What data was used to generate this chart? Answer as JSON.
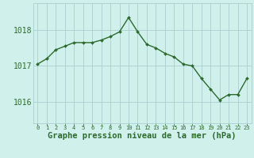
{
  "x": [
    0,
    1,
    2,
    3,
    4,
    5,
    6,
    7,
    8,
    9,
    10,
    11,
    12,
    13,
    14,
    15,
    16,
    17,
    18,
    19,
    20,
    21,
    22,
    23
  ],
  "y": [
    1017.05,
    1017.2,
    1017.45,
    1017.55,
    1017.65,
    1017.65,
    1017.65,
    1017.72,
    1017.82,
    1017.95,
    1018.35,
    1017.95,
    1017.6,
    1017.5,
    1017.35,
    1017.25,
    1017.05,
    1017.0,
    1016.65,
    1016.35,
    1016.05,
    1016.2,
    1016.2,
    1016.65
  ],
  "line_color": "#2d6a2d",
  "marker": "D",
  "marker_size": 2.0,
  "bg_color": "#cff0eb",
  "grid_color": "#aacfcf",
  "xlabel": "Graphe pression niveau de la mer (hPa)",
  "xlabel_fontsize": 7.5,
  "yticks": [
    1016,
    1017,
    1018
  ],
  "ylim": [
    1015.4,
    1018.75
  ],
  "xlim": [
    -0.5,
    23.5
  ],
  "y_tick_fontsize": 7.0,
  "x_tick_fontsize": 5.0,
  "line_width": 1.0
}
